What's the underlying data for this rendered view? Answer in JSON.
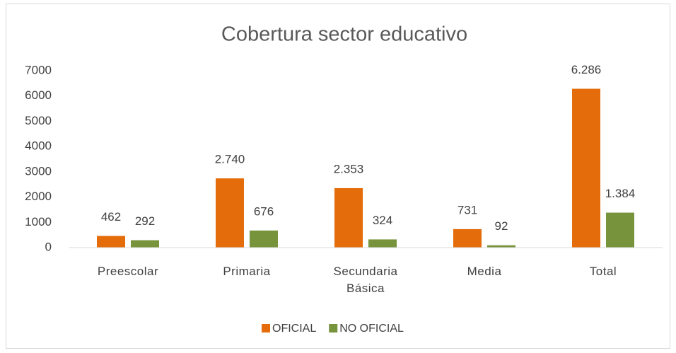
{
  "chart_data": {
    "type": "bar",
    "title": "Cobertura sector educativo",
    "categories": [
      "Preescolar",
      "Primaria",
      "Secundaria Básica",
      "Media",
      "Total"
    ],
    "series": [
      {
        "name": "OFICIAL",
        "color": "#e46c0a",
        "values": [
          462,
          2740,
          2353,
          731,
          6286
        ],
        "value_labels": [
          "462",
          "2.740",
          "2.353",
          "731",
          "6.286"
        ]
      },
      {
        "name": "NO OFICIAL",
        "color": "#77933c",
        "values": [
          292,
          676,
          324,
          92,
          1384
        ],
        "value_labels": [
          "292",
          "676",
          "324",
          "92",
          "1.384"
        ]
      }
    ],
    "ylim": [
      0,
      7000
    ],
    "yticks": [
      0,
      1000,
      2000,
      3000,
      4000,
      5000,
      6000,
      7000
    ],
    "grid": false,
    "legend": "bottom"
  }
}
